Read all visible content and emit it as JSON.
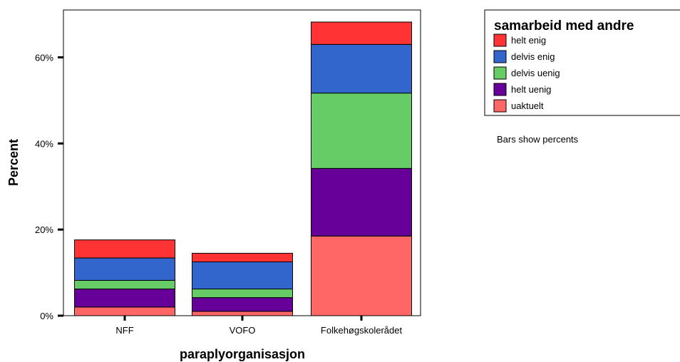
{
  "chart_data": {
    "type": "bar",
    "stacked": true,
    "categories": [
      "NFF",
      "VOFO",
      "Folkehøgskolerådet"
    ],
    "series": [
      {
        "name": "uaktuelt",
        "color": "#ff6666",
        "values": [
          2.0,
          1.0,
          18.5
        ]
      },
      {
        "name": "helt uenig",
        "color": "#660099",
        "values": [
          4.2,
          3.2,
          15.7
        ]
      },
      {
        "name": "delvis uenig",
        "color": "#66cc66",
        "values": [
          2.0,
          2.0,
          17.5
        ]
      },
      {
        "name": "delvis enig",
        "color": "#3366cc",
        "values": [
          5.2,
          6.3,
          11.3
        ]
      },
      {
        "name": "helt enig",
        "color": "#ff3333",
        "values": [
          4.2,
          2.0,
          5.2
        ]
      }
    ],
    "xlabel": "paraplyorganisasjon",
    "ylabel": "Percent",
    "ylim": [
      0,
      71
    ],
    "yticks": [
      0,
      20,
      40,
      60
    ],
    "ytick_labels": [
      "0%",
      "20%",
      "40%",
      "60%"
    ],
    "legend": {
      "title": "samarbeid med andre",
      "order": [
        "helt enig",
        "delvis enig",
        "delvis uenig",
        "helt uenig",
        "uaktuelt"
      ],
      "placement": "top-right"
    },
    "annotation": "Bars show percents",
    "grid": false
  }
}
